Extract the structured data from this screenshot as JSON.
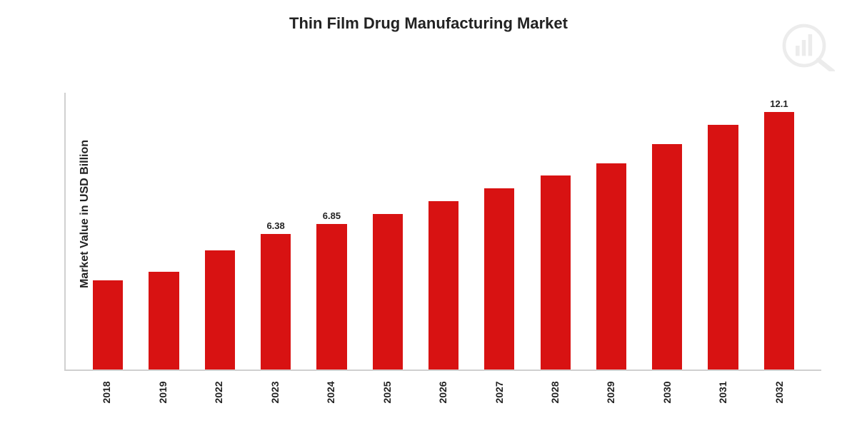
{
  "chart": {
    "type": "bar",
    "title": "Thin Film Drug Manufacturing Market",
    "title_fontsize": 22,
    "ylabel": "Market Value in USD Billion",
    "ylabel_fontsize": 16,
    "xlabel_fontsize": 14,
    "bar_label_fontsize": 13,
    "categories": [
      "2018",
      "2019",
      "2022",
      "2023",
      "2024",
      "2025",
      "2026",
      "2027",
      "2028",
      "2029",
      "2030",
      "2031",
      "2032"
    ],
    "values": [
      4.2,
      4.6,
      5.6,
      6.38,
      6.85,
      7.3,
      7.9,
      8.5,
      9.1,
      9.7,
      10.6,
      11.5,
      12.1
    ],
    "shown_value_labels": {
      "3": "6.38",
      "4": "6.85",
      "12": "12.1"
    },
    "ylim": [
      0,
      13
    ],
    "bar_color": "#d81212",
    "axis_color": "#d0d0d0",
    "background_color": "#ffffff",
    "text_color": "#222222",
    "bar_width_ratio": 0.54
  }
}
